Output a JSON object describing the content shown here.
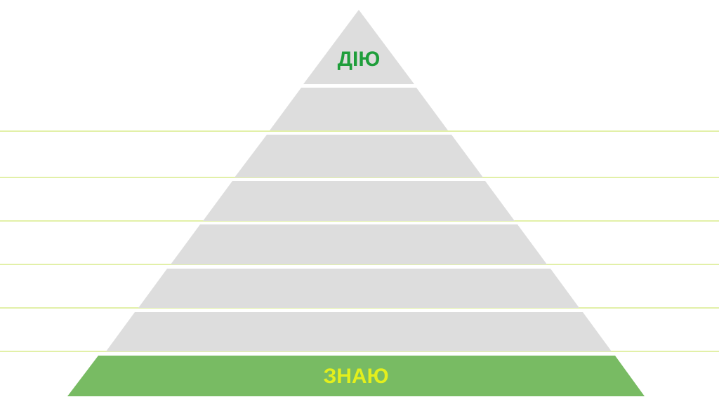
{
  "top_label": "ДІЮ",
  "bottom_label": "ЗНАЮ"
}
